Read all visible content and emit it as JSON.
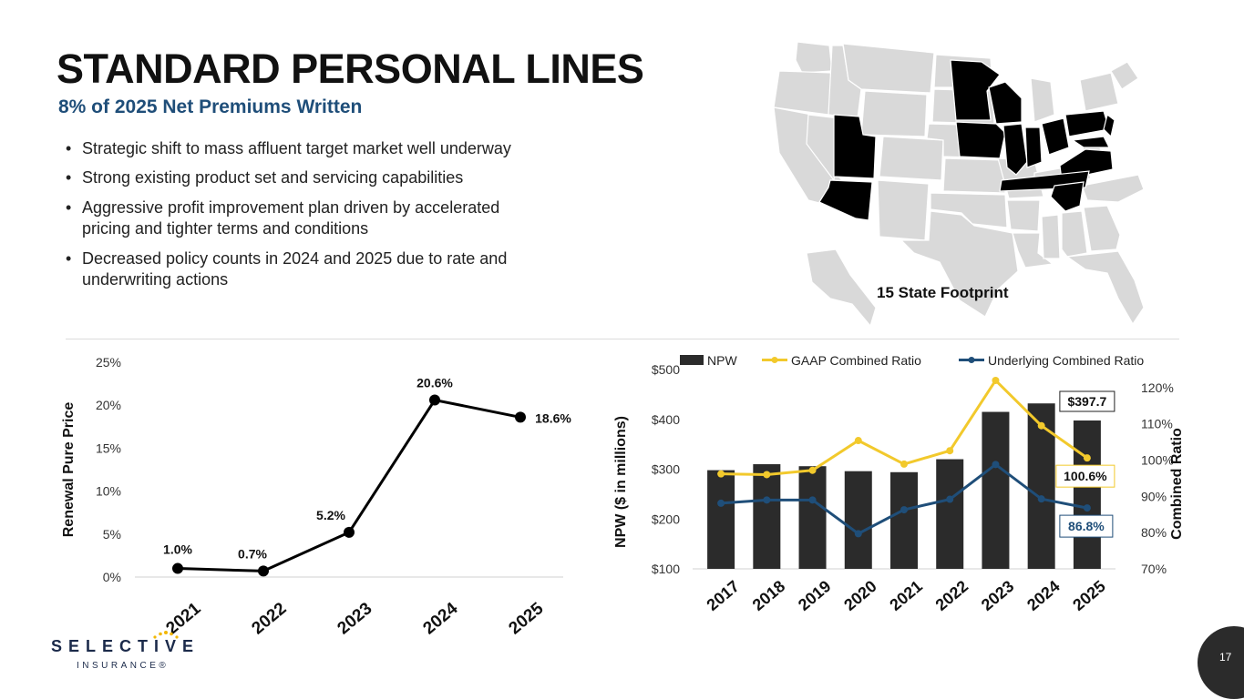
{
  "header": {
    "title": "STANDARD PERSONAL LINES",
    "subtitle": "8% of 2025 Net Premiums Written"
  },
  "bullets": [
    "Strategic shift to mass affluent target market well underway",
    "Strong existing product set and servicing capabilities",
    "Aggressive profit improvement plan driven by accelerated pricing and tighter terms and conditions",
    "Decreased policy counts in 2024 and 2025 due to rate and underwriting actions"
  ],
  "map": {
    "label": "15 State Footprint",
    "highlight_color": "#000000",
    "base_color": "#d9d9d9"
  },
  "logo": {
    "name": "SELECTIVE",
    "sub": "INSURANCE®"
  },
  "page_number": "17",
  "chart_data": [
    {
      "type": "line",
      "categories": [
        "2021",
        "2022",
        "2023",
        "2024",
        "2025"
      ],
      "values": [
        1.0,
        0.7,
        5.2,
        20.6,
        18.6
      ],
      "data_labels": [
        "1.0%",
        "0.7%",
        "5.2%",
        "20.6%",
        "18.6%"
      ],
      "ylabel": "Renewal Pure Price",
      "ylim": [
        0,
        25
      ],
      "yticks": [
        "0%",
        "5%",
        "10%",
        "15%",
        "20%",
        "25%"
      ],
      "color": "#000000",
      "grid": false
    },
    {
      "type": "bar",
      "categories": [
        "2017",
        "2018",
        "2019",
        "2020",
        "2021",
        "2022",
        "2023",
        "2024",
        "2025"
      ],
      "ylabel": "NPW ($ in millions)",
      "ylabel_right": "Combined Ratio",
      "ylim": [
        100,
        500
      ],
      "yticks": [
        "$100",
        "$200",
        "$300",
        "$400",
        "$500"
      ],
      "ylim_right": [
        70,
        125
      ],
      "yticks_right": [
        "70%",
        "80%",
        "90%",
        "100%",
        "110%",
        "120%"
      ],
      "legend_position": "top",
      "series": [
        {
          "name": "NPW",
          "type": "bar",
          "color": "#2b2b2b",
          "values": [
            298,
            310,
            306,
            296,
            294,
            320,
            415,
            432,
            397.7
          ]
        },
        {
          "name": "GAAP Combined Ratio",
          "type": "line",
          "color": "#f2c92c",
          "values": [
            96.2,
            96.0,
            97.2,
            105.4,
            98.9,
            102.6,
            122.0,
            109.5,
            100.6
          ]
        },
        {
          "name": "Underlying Combined Ratio",
          "type": "line",
          "color": "#1f4e79",
          "values": [
            88.1,
            89.0,
            89.0,
            79.7,
            86.3,
            89.2,
            98.8,
            89.3,
            86.8
          ]
        }
      ],
      "callouts": {
        "npw": "$397.7",
        "gaap": "100.6%",
        "underlying": "86.8%"
      }
    }
  ]
}
